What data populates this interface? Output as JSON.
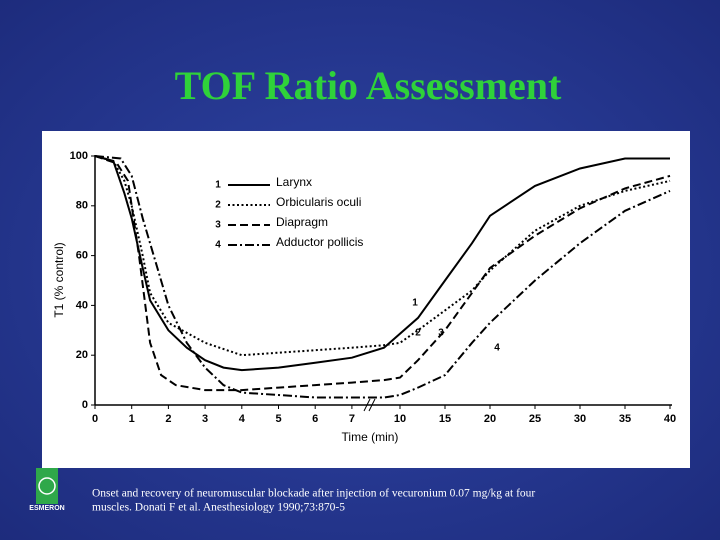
{
  "slide_title": "TOF Ratio Assessment",
  "caption": [
    "Onset and recovery of neuromuscular blockade after injection of vecuronium 0.07 mg/kg at four",
    "muscles.  Donati F et al. Anesthesiology 1990;73:870-5"
  ],
  "logo_text": "ESMERON",
  "chart_data": {
    "type": "line",
    "x_label": "Time (min)",
    "y_label": "T1 (% control)",
    "xlim": [
      0,
      40
    ],
    "xticks": [
      0,
      1,
      2,
      3,
      4,
      5,
      6,
      7,
      10,
      15,
      20,
      25,
      30,
      35,
      40
    ],
    "ylim": [
      0,
      100
    ],
    "yticks": [
      0,
      20,
      40,
      60,
      80,
      100
    ],
    "grid": false,
    "legend": "upper center",
    "series": [
      {
        "name": "Larynx",
        "marker_label": "1",
        "color": "#000000",
        "dash": "solid",
        "x": [
          0,
          0.5,
          0.8,
          1,
          1.3,
          1.5,
          2,
          2.5,
          3,
          3.5,
          4,
          5,
          6,
          7,
          9,
          12,
          15,
          18,
          20,
          25,
          30,
          35,
          40
        ],
        "values": [
          100,
          98,
          85,
          75,
          55,
          42,
          30,
          23,
          18,
          15,
          14,
          15,
          17,
          19,
          23,
          35,
          50,
          65,
          76,
          88,
          95,
          99,
          99
        ]
      },
      {
        "name": "Orbicularis oculi",
        "marker_label": "2",
        "color": "#000000",
        "dash": "dotted",
        "x": [
          0,
          0.5,
          0.8,
          1,
          1.3,
          1.5,
          2,
          3,
          4,
          5,
          6,
          7,
          9,
          10,
          12,
          15,
          18,
          20,
          25,
          30,
          35,
          40
        ],
        "values": [
          100,
          98,
          90,
          80,
          60,
          45,
          33,
          25,
          20,
          21,
          22,
          23,
          24,
          25,
          30,
          38,
          46,
          54,
          70,
          80,
          86,
          90
        ]
      },
      {
        "name": "Diapragm",
        "marker_label": "3",
        "color": "#000000",
        "dash": "dashed",
        "x": [
          0,
          0.6,
          0.9,
          1,
          1.2,
          1.5,
          1.8,
          2.2,
          3,
          4,
          5,
          6,
          7,
          9,
          10,
          12,
          15,
          18,
          20,
          25,
          30,
          35,
          40
        ],
        "values": [
          100,
          97,
          90,
          80,
          60,
          25,
          12,
          8,
          6,
          6,
          7,
          8,
          9,
          10,
          11,
          18,
          30,
          45,
          55,
          68,
          79,
          87,
          92
        ]
      },
      {
        "name": "Adductor pollicis",
        "marker_label": "4",
        "color": "#000000",
        "dash": "dashdot",
        "x": [
          0,
          0.7,
          1,
          1.3,
          1.7,
          2,
          2.5,
          3,
          3.5,
          4,
          5,
          6,
          7,
          9,
          10,
          12,
          15,
          18,
          20,
          25,
          30,
          35,
          40
        ],
        "values": [
          100,
          99,
          92,
          75,
          55,
          40,
          25,
          15,
          8,
          5,
          4,
          3,
          3,
          3,
          4,
          7,
          12,
          25,
          33,
          50,
          65,
          78,
          86
        ]
      }
    ]
  }
}
